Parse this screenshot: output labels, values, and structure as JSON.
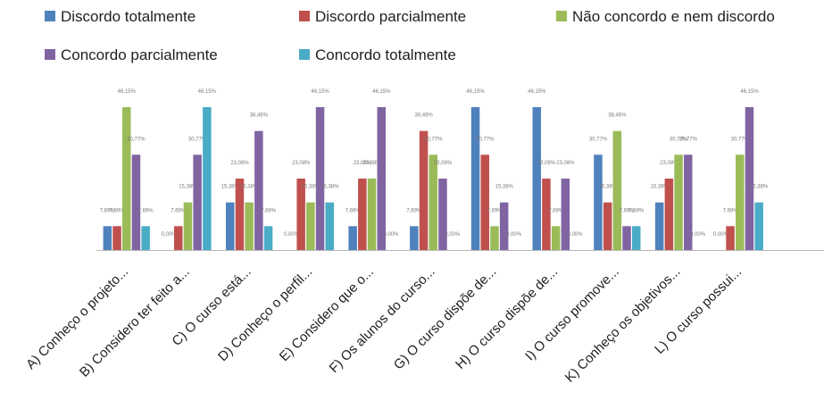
{
  "chart_data": {
    "type": "bar",
    "title": "",
    "xlabel": "",
    "ylabel": "",
    "ylim": [
      0,
      50
    ],
    "grid": false,
    "legend_position": "top",
    "categories": [
      "A) Conheço o projeto...",
      "B) Considero ter feito a...",
      "C) O curso está...",
      "D) Conheço o perfil...",
      "E) Considero que o...",
      "F) Os alunos do curso...",
      "G) O curso dispõe de...",
      "H) O curso dispõe de...",
      "I) O curso promove...",
      "K) Conheço os objetivos...",
      "L) O curso possui..."
    ],
    "series": [
      {
        "name": "Discordo totalmente",
        "color": "#4f81bd",
        "values": [
          7.69,
          0.0,
          15.38,
          0.0,
          7.69,
          7.69,
          46.15,
          46.15,
          30.77,
          15.38,
          0.0
        ],
        "labels": [
          "7,69%",
          "0,00%",
          "15,38%",
          "0,00%",
          "7,69%",
          "7,69%",
          "46,15%",
          "46,15%",
          "30,77%",
          "15,38%",
          "0,00%"
        ]
      },
      {
        "name": "Discordo parcialmente",
        "color": "#c0504d",
        "values": [
          7.69,
          7.69,
          23.08,
          23.08,
          23.08,
          38.46,
          30.77,
          23.08,
          15.38,
          23.08,
          7.69
        ],
        "labels": [
          "7,69%",
          "7,69%",
          "23,08%",
          "23,08%",
          "23,08%",
          "38,46%",
          "30,77%",
          "23,08%",
          "15,38%",
          "23,08%",
          "7,69%"
        ]
      },
      {
        "name": "Não concordo e nem discordo",
        "color": "#9bbb59",
        "values": [
          46.15,
          15.38,
          15.38,
          15.38,
          23.08,
          30.77,
          7.69,
          7.69,
          38.46,
          30.77,
          30.77
        ],
        "labels": [
          "46,15%",
          "15,38%",
          "15,38%",
          "15,38%",
          "23,08%",
          "30,77%",
          "7,69%",
          "7,69%",
          "38,46%",
          "30,77%",
          "30,77%"
        ]
      },
      {
        "name": "Concordo parcialmente",
        "color": "#8064a2",
        "values": [
          30.77,
          30.77,
          38.46,
          46.15,
          46.15,
          23.08,
          15.38,
          23.08,
          7.69,
          30.77,
          46.15
        ],
        "labels": [
          "30,77%",
          "30,77%",
          "38,46%",
          "46,15%",
          "46,15%",
          "23,08%",
          "15,38%",
          "23,08%",
          "7,69%",
          "30,77%",
          "46,15%"
        ]
      },
      {
        "name": "Concordo totalmente",
        "color": "#4bacc6",
        "values": [
          7.69,
          46.15,
          7.69,
          15.38,
          0.0,
          0.0,
          0.0,
          0.0,
          7.69,
          0.0,
          15.38
        ],
        "labels": [
          "7,69%",
          "46,15%",
          "7,69%",
          "15,38%",
          "0,00%",
          "0,00%",
          "0,00%",
          "0,00%",
          "7,69%",
          "0,00%",
          "15,38%"
        ]
      }
    ]
  }
}
